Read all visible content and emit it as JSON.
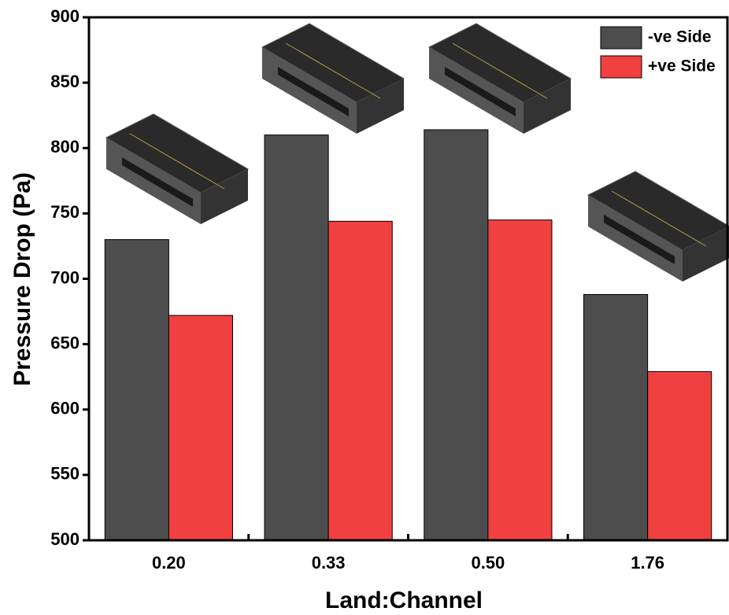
{
  "chart_data": {
    "type": "bar",
    "x_label": "Land:Channel",
    "y_label": "Pressure Drop (Pa)",
    "categories": [
      "0.20",
      "0.33",
      "0.50",
      "1.76"
    ],
    "series": [
      {
        "name": "-ve Side",
        "color": "#4d4d4d",
        "values": [
          730,
          810,
          814,
          688
        ]
      },
      {
        "name": "+ve Side",
        "color": "#f04040",
        "values": [
          672,
          744,
          745,
          629
        ]
      }
    ],
    "ylim": [
      500,
      900
    ],
    "yticks": [
      500,
      550,
      600,
      650,
      700,
      750,
      800,
      850,
      900
    ],
    "legend": "upper right"
  }
}
